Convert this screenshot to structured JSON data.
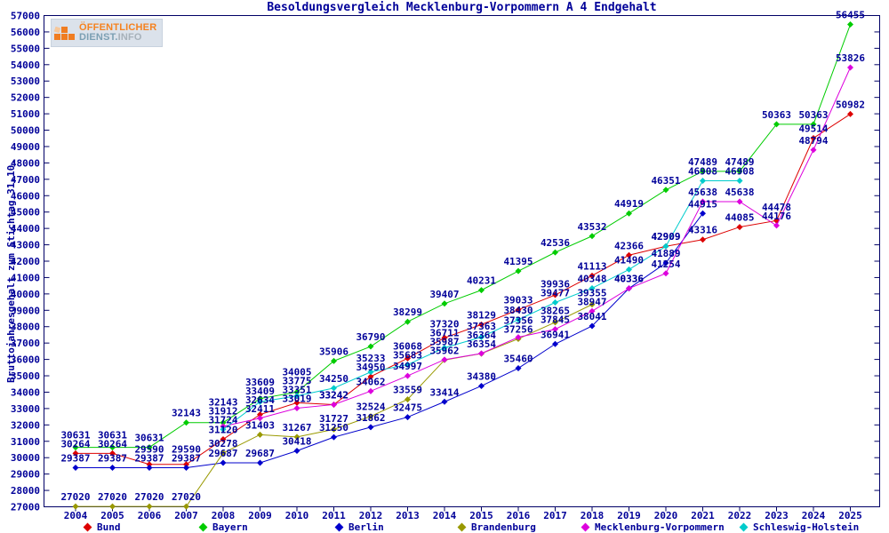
{
  "title": "Besoldungsvergleich Mecklenburg-Vorpommern A 4 Endgehalt",
  "logo": {
    "line1": "ÖFFENTLICHER",
    "line2_strong": "DIENST.",
    "line2_light": "INFO"
  },
  "y_axis": {
    "label": "Bruttojahresgehalt zum Stichtag 31.10.",
    "min": 27000,
    "max": 57000,
    "step": 1000
  },
  "colors": {
    "text": "#000099",
    "border": "#000066",
    "background": "#ffffff"
  },
  "chart_data": {
    "type": "line",
    "title": "Besoldungsvergleich Mecklenburg-Vorpommern A 4 Endgehalt",
    "ylabel": "Bruttojahresgehalt zum Stichtag 31.10.",
    "xlabel": "",
    "ylim": [
      27000,
      57000
    ],
    "grid": false,
    "legend_position": "bottom",
    "point_labels": true,
    "x": [
      2004,
      2005,
      2006,
      2007,
      2008,
      2009,
      2010,
      2011,
      2012,
      2013,
      2014,
      2015,
      2016,
      2017,
      2018,
      2019,
      2020,
      2021,
      2022,
      2023,
      2024,
      2025
    ],
    "series": [
      {
        "name": "Bund",
        "color": "#dd0000",
        "values": [
          30264,
          30264,
          29590,
          29590,
          31120,
          32634,
          33351,
          33242,
          34950,
          36068,
          37320,
          38129,
          39033,
          39936,
          41113,
          42366,
          42909,
          43316,
          44085,
          44478,
          49514,
          50982
        ]
      },
      {
        "name": "Bayern",
        "color": "#00cc00",
        "values": [
          30631,
          30631,
          30631,
          32143,
          32143,
          33609,
          34005,
          35906,
          36790,
          38299,
          39407,
          40231,
          41395,
          42536,
          43532,
          44919,
          46351,
          47489,
          47489,
          50363,
          50363,
          56455
        ]
      },
      {
        "name": "Berlin",
        "color": "#0000cc",
        "values": [
          29387,
          29387,
          29387,
          29387,
          29687,
          29687,
          30418,
          31250,
          31862,
          32475,
          33414,
          34380,
          35460,
          36941,
          38041,
          40336,
          41889,
          44915,
          null,
          null,
          null,
          null
        ]
      },
      {
        "name": "Brandenburg",
        "color": "#999900",
        "values": [
          27020,
          27020,
          27020,
          27020,
          30278,
          31403,
          31267,
          31727,
          32524,
          33559,
          35962,
          36354,
          37256,
          38265,
          39355,
          null,
          null,
          null,
          null,
          null,
          null,
          null
        ]
      },
      {
        "name": "Mecklenburg-Vorpommern",
        "color": "#dd00dd",
        "values": [
          null,
          null,
          null,
          null,
          31912,
          32411,
          33019,
          33242,
          34062,
          34997,
          35987,
          36364,
          37356,
          37845,
          38947,
          40336,
          41254,
          45638,
          45638,
          44176,
          48794,
          53826
        ]
      },
      {
        "name": "Schleswig-Holstein",
        "color": "#00cccc",
        "values": [
          null,
          null,
          null,
          null,
          31724,
          33409,
          33775,
          34250,
          35233,
          35683,
          36711,
          37363,
          38430,
          39477,
          40348,
          41490,
          42909,
          46908,
          46908,
          null,
          null,
          null
        ]
      }
    ]
  }
}
